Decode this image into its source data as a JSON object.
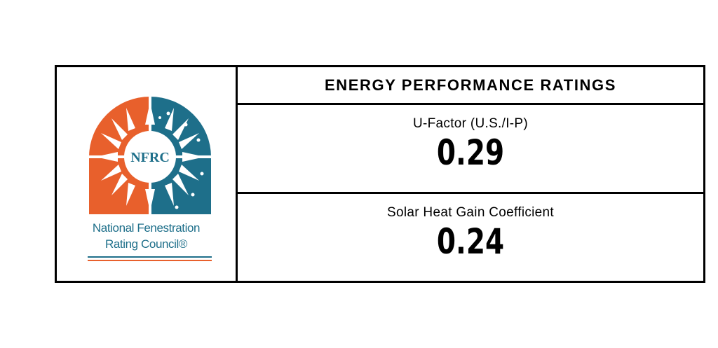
{
  "logo": {
    "acronym": "NFRC",
    "org_line1": "National Fenestration",
    "org_line2": "Rating Council®",
    "colors": {
      "orange": "#e8602c",
      "teal": "#1e6f8a"
    }
  },
  "ratings": {
    "title": "ENERGY PERFORMANCE RATINGS",
    "u_factor": {
      "label": "U-Factor (U.S./I-P)",
      "value": "0.29"
    },
    "shgc": {
      "label": "Solar Heat Gain Coefficient",
      "value": "0.24"
    }
  }
}
